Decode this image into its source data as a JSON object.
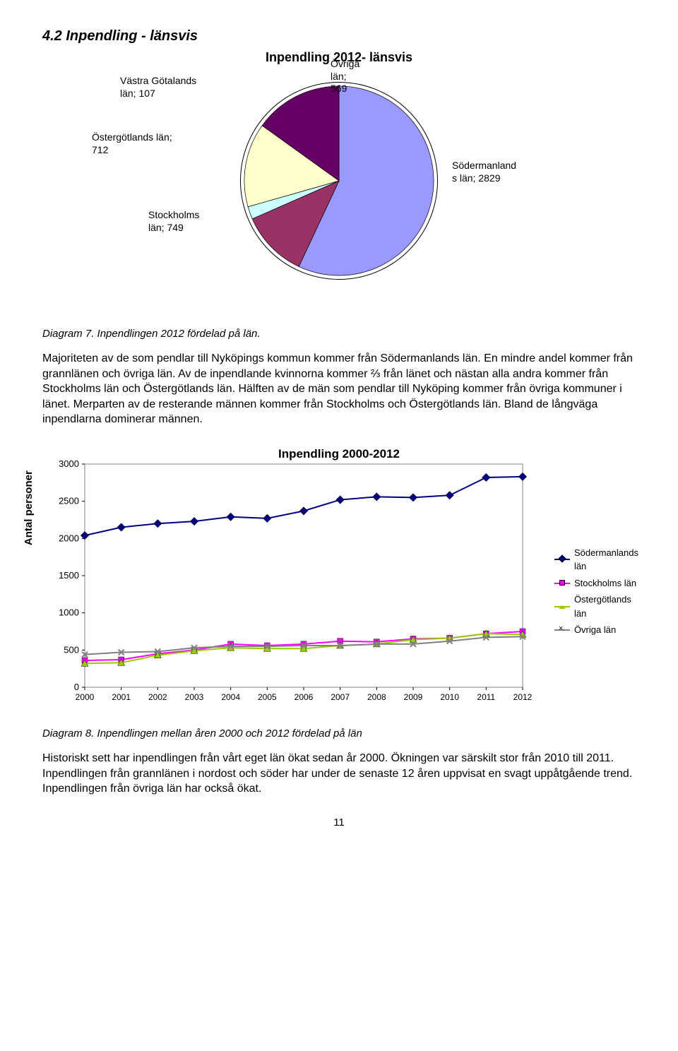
{
  "section_heading": "4.2 Inpendling - länsvis",
  "pie_chart": {
    "type": "pie",
    "title": "Inpendling 2012- länsvis",
    "background_color": "#ffffff",
    "border_color": "#000000",
    "slices": [
      {
        "label": "Södermanlands län; 2829",
        "value": 2829,
        "color": "#9999ff"
      },
      {
        "label": "Övriga län; 569",
        "value": 569,
        "color": "#993366"
      },
      {
        "label": "Västra Götalands län; 107",
        "value": 107,
        "color": "#ccffff"
      },
      {
        "label": "Östergötlands län; 712",
        "value": 712,
        "color": "#ffffcc"
      },
      {
        "label": "Stockholms län; 749",
        "value": 749,
        "color": "#660066"
      }
    ],
    "label_fontsize": 14
  },
  "caption1": "Diagram 7. Inpendlingen 2012 fördelad på län.",
  "body_text": "Majoriteten av de som pendlar till Nyköpings kommun kommer från Södermanlands län. En mindre andel kommer från grannlänen och övriga län. Av de inpendlande kvinnorna kommer ⅔ från länet och nästan alla andra kommer från Stockholms län och Östergötlands län. Hälften av de män som pendlar till Nyköping kommer från övriga kommuner i länet. Merparten av de resterande männen kommer från Stockholms och Östergötlands län. Bland de långväga inpendlarna dominerar männen.",
  "line_chart": {
    "type": "line",
    "title": "Inpendling 2000-2012",
    "ylabel": "Antal personer",
    "title_fontsize": 17,
    "label_fontsize": 15,
    "tick_fontsize": 13,
    "ylim": [
      0,
      3000
    ],
    "ytick_step": 500,
    "xlim": [
      2000,
      2012
    ],
    "x_values": [
      2000,
      2001,
      2002,
      2003,
      2004,
      2005,
      2006,
      2007,
      2008,
      2009,
      2010,
      2011,
      2012
    ],
    "plot_area_border_color": "#808080",
    "grid_color": "#000000",
    "background_color": "#ffffff",
    "series": [
      {
        "name": "Södermanlands län",
        "color": "#000080",
        "marker": "diamond",
        "line_width": 2,
        "y": [
          2040,
          2150,
          2200,
          2230,
          2290,
          2270,
          2370,
          2520,
          2560,
          2550,
          2580,
          2820,
          2830
        ]
      },
      {
        "name": "Stockholms län",
        "color": "#ff00ff",
        "marker": "square",
        "line_width": 2,
        "y": [
          360,
          370,
          450,
          500,
          580,
          560,
          580,
          620,
          610,
          650,
          660,
          720,
          750
        ]
      },
      {
        "name": "Östergötlands län",
        "color": "#99cc00",
        "marker": "triangle",
        "line_width": 2,
        "y": [
          320,
          330,
          430,
          490,
          530,
          520,
          520,
          560,
          580,
          640,
          660,
          720,
          710
        ]
      },
      {
        "name": "Övriga län",
        "color": "#808080",
        "marker": "x",
        "line_width": 2,
        "y": [
          440,
          470,
          480,
          530,
          550,
          550,
          560,
          560,
          580,
          580,
          620,
          670,
          680
        ]
      }
    ]
  },
  "caption2": "Diagram 8. Inpendlingen mellan åren 2000 och 2012 fördelad på län",
  "body_text2": "Historiskt sett har inpendlingen från vårt eget län ökat sedan år 2000. Ökningen var särskilt stor från 2010 till 2011. Inpendlingen från grannlänen i nordost och söder har under de senaste 12 åren uppvisat en svagt uppåtgående trend. Inpendlingen från övriga län har också ökat.",
  "page_number": "11"
}
